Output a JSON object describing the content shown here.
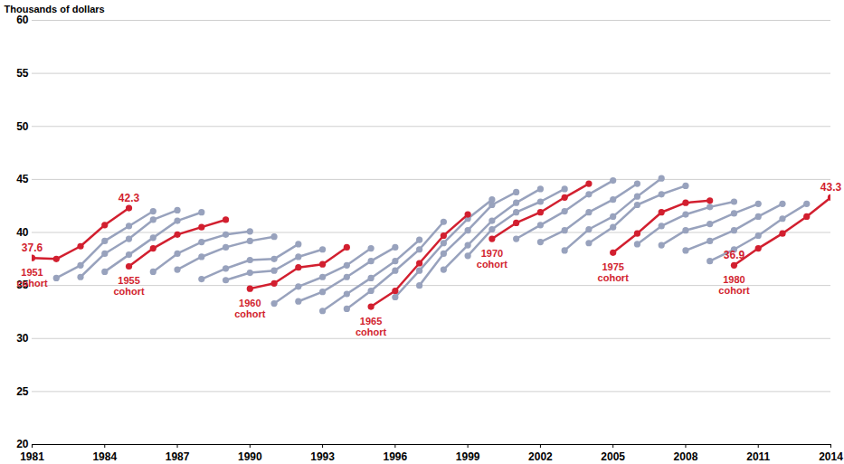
{
  "chart_data": {
    "type": "line",
    "ylabel": "Thousands of dollars",
    "xlim": [
      1981,
      2014
    ],
    "xticks": [
      1981,
      1984,
      1987,
      1990,
      1993,
      1996,
      1999,
      2002,
      2005,
      2008,
      2011,
      2014
    ],
    "ylim": [
      20,
      60
    ],
    "yticks": [
      20,
      25,
      30,
      35,
      40,
      45,
      50,
      55,
      60
    ],
    "grid": true,
    "marker": "circle",
    "series": [
      {
        "name": "1951 cohort",
        "color": "#d21f2f",
        "data_labels": true,
        "x": [
          1981,
          1982,
          1983,
          1984,
          1985
        ],
        "values": [
          37.6,
          37.5,
          38.7,
          40.7,
          42.3
        ]
      },
      {
        "color": "#98a2bd",
        "x": [
          1982,
          1983,
          1984,
          1985,
          1986
        ],
        "values": [
          35.7,
          36.9,
          39.2,
          40.6,
          42.0
        ]
      },
      {
        "color": "#98a2bd",
        "x": [
          1983,
          1984,
          1985,
          1986,
          1987
        ],
        "values": [
          35.8,
          38.0,
          39.4,
          41.2,
          42.1
        ]
      },
      {
        "color": "#98a2bd",
        "x": [
          1984,
          1985,
          1986,
          1987,
          1988
        ],
        "values": [
          36.3,
          37.9,
          39.5,
          41.1,
          41.9
        ]
      },
      {
        "name": "1955 cohort",
        "color": "#d21f2f",
        "x": [
          1985,
          1986,
          1987,
          1988,
          1989
        ],
        "values": [
          36.8,
          38.5,
          39.8,
          40.5,
          41.2
        ]
      },
      {
        "color": "#98a2bd",
        "x": [
          1986,
          1987,
          1988,
          1989,
          1990
        ],
        "values": [
          36.3,
          38.0,
          39.1,
          39.8,
          40.1
        ]
      },
      {
        "color": "#98a2bd",
        "x": [
          1987,
          1988,
          1989,
          1990,
          1991
        ],
        "values": [
          36.5,
          37.7,
          38.6,
          39.2,
          39.6
        ]
      },
      {
        "color": "#98a2bd",
        "x": [
          1988,
          1989,
          1990,
          1991,
          1992
        ],
        "values": [
          35.6,
          36.6,
          37.4,
          37.5,
          38.9
        ]
      },
      {
        "color": "#98a2bd",
        "x": [
          1989,
          1990,
          1991,
          1992,
          1993
        ],
        "values": [
          35.5,
          36.2,
          36.4,
          37.7,
          38.4
        ]
      },
      {
        "name": "1960 cohort",
        "color": "#d21f2f",
        "x": [
          1990,
          1991,
          1992,
          1993,
          1994
        ],
        "values": [
          34.7,
          35.2,
          36.7,
          37.0,
          38.6
        ]
      },
      {
        "color": "#98a2bd",
        "x": [
          1991,
          1992,
          1993,
          1994,
          1995
        ],
        "values": [
          33.3,
          34.9,
          35.8,
          36.9,
          38.5
        ]
      },
      {
        "color": "#98a2bd",
        "x": [
          1992,
          1993,
          1994,
          1995,
          1996
        ],
        "values": [
          33.5,
          34.4,
          35.8,
          37.3,
          38.6
        ]
      },
      {
        "color": "#98a2bd",
        "x": [
          1993,
          1994,
          1995,
          1996,
          1997
        ],
        "values": [
          32.6,
          34.2,
          35.7,
          37.3,
          39.3
        ]
      },
      {
        "color": "#98a2bd",
        "x": [
          1994,
          1995,
          1996,
          1997,
          1998
        ],
        "values": [
          32.8,
          34.5,
          36.4,
          38.4,
          41.0
        ]
      },
      {
        "name": "1965 cohort",
        "color": "#d21f2f",
        "x": [
          1995,
          1996,
          1997,
          1998,
          1999
        ],
        "values": [
          33.0,
          34.5,
          37.1,
          39.7,
          41.7
        ]
      },
      {
        "color": "#98a2bd",
        "x": [
          1996,
          1997,
          1998,
          1999,
          2000
        ],
        "values": [
          33.9,
          36.4,
          39.0,
          41.3,
          43.1
        ]
      },
      {
        "color": "#98a2bd",
        "x": [
          1997,
          1998,
          1999,
          2000,
          2001
        ],
        "values": [
          35.0,
          38.0,
          40.2,
          42.6,
          43.8
        ]
      },
      {
        "color": "#98a2bd",
        "x": [
          1998,
          1999,
          2000,
          2001,
          2002
        ],
        "values": [
          36.5,
          38.8,
          41.1,
          42.8,
          44.1
        ]
      },
      {
        "color": "#98a2bd",
        "x": [
          1999,
          2000,
          2001,
          2002,
          2003
        ],
        "values": [
          37.8,
          40.3,
          41.9,
          42.9,
          44.1
        ]
      },
      {
        "name": "1970 cohort",
        "color": "#d21f2f",
        "x": [
          2000,
          2001,
          2002,
          2003,
          2004
        ],
        "values": [
          39.4,
          40.9,
          41.9,
          43.3,
          44.6
        ]
      },
      {
        "color": "#98a2bd",
        "x": [
          2001,
          2002,
          2003,
          2004,
          2005
        ],
        "values": [
          39.4,
          40.7,
          42.0,
          43.6,
          44.9
        ]
      },
      {
        "color": "#98a2bd",
        "x": [
          2002,
          2003,
          2004,
          2005,
          2006
        ],
        "values": [
          39.1,
          40.2,
          41.9,
          43.1,
          44.6
        ]
      },
      {
        "color": "#98a2bd",
        "x": [
          2003,
          2004,
          2005,
          2006,
          2007
        ],
        "values": [
          38.3,
          40.3,
          41.5,
          43.4,
          45.1
        ]
      },
      {
        "color": "#98a2bd",
        "x": [
          2004,
          2005,
          2006,
          2007,
          2008
        ],
        "values": [
          39.0,
          40.5,
          42.6,
          43.6,
          44.4
        ]
      },
      {
        "name": "1975 cohort",
        "color": "#d21f2f",
        "x": [
          2005,
          2006,
          2007,
          2008,
          2009
        ],
        "values": [
          38.1,
          39.9,
          41.9,
          42.8,
          43.0
        ]
      },
      {
        "color": "#98a2bd",
        "x": [
          2006,
          2007,
          2008,
          2009,
          2010
        ],
        "values": [
          38.9,
          40.6,
          41.7,
          42.4,
          42.9
        ]
      },
      {
        "color": "#98a2bd",
        "x": [
          2007,
          2008,
          2009,
          2010,
          2011
        ],
        "values": [
          38.8,
          40.2,
          40.8,
          41.8,
          42.7
        ]
      },
      {
        "color": "#98a2bd",
        "x": [
          2008,
          2009,
          2010,
          2011,
          2012
        ],
        "values": [
          38.3,
          39.2,
          40.2,
          41.5,
          42.7
        ]
      },
      {
        "color": "#98a2bd",
        "x": [
          2009,
          2010,
          2011,
          2012,
          2013
        ],
        "values": [
          37.3,
          38.4,
          39.7,
          41.3,
          42.7
        ]
      },
      {
        "name": "1980 cohort",
        "color": "#d21f2f",
        "data_labels": true,
        "x": [
          2010,
          2011,
          2012,
          2013,
          2014
        ],
        "values": [
          36.9,
          38.5,
          39.9,
          41.5,
          43.3
        ]
      }
    ]
  }
}
